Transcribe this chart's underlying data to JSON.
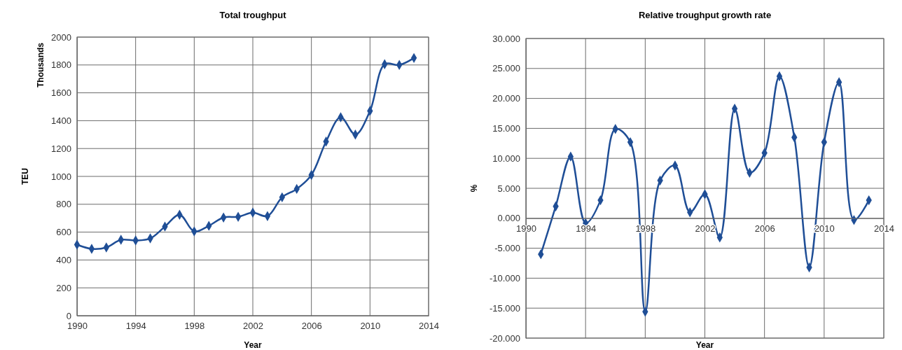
{
  "chart_data": [
    {
      "type": "line",
      "title": "Total troughput",
      "xlabel": "Year",
      "ylabel": "TEU",
      "y2label": "Thousands",
      "x": [
        1990,
        1991,
        1992,
        1993,
        1994,
        1995,
        1996,
        1997,
        1998,
        1999,
        2000,
        2001,
        2002,
        2003,
        2004,
        2005,
        2006,
        2007,
        2008,
        2009,
        2010,
        2011,
        2012,
        2013
      ],
      "series": [
        {
          "color": "#1f4e96",
          "values": [
            510,
            480,
            490,
            545,
            540,
            555,
            640,
            725,
            605,
            645,
            705,
            710,
            740,
            715,
            850,
            910,
            1010,
            1250,
            1425,
            1300,
            1470,
            1805,
            1800,
            1850
          ]
        }
      ],
      "xlim": [
        1990,
        2014
      ],
      "xticks": [
        1990,
        1994,
        1998,
        2002,
        2006,
        2010,
        2014
      ],
      "ylim": [
        0,
        2000
      ],
      "yticks": [
        0,
        200,
        400,
        600,
        800,
        1000,
        1200,
        1400,
        1600,
        1800,
        2000
      ],
      "grid": true,
      "marker": "diamond"
    },
    {
      "type": "line",
      "title": "Relative troughput growth rate",
      "xlabel": "Year",
      "ylabel": "%",
      "x": [
        1991,
        1992,
        1993,
        1994,
        1995,
        1996,
        1997,
        1998,
        1999,
        2000,
        2001,
        2002,
        2003,
        2004,
        2005,
        2006,
        2007,
        2008,
        2009,
        2010,
        2011,
        2012,
        2013
      ],
      "series": [
        {
          "color": "#1f4e96",
          "values": [
            -6,
            2,
            10.3,
            -0.8,
            3,
            14.9,
            12.7,
            -15.6,
            6.3,
            8.8,
            1,
            4,
            -3.2,
            18.3,
            7.6,
            10.9,
            23.7,
            13.5,
            -8.2,
            12.7,
            22.7,
            -0.3,
            3
          ]
        }
      ],
      "xlim": [
        1990,
        2014
      ],
      "xticks": [
        1990,
        1994,
        1998,
        2002,
        2006,
        2010,
        2014
      ],
      "ylim": [
        -20,
        30
      ],
      "yticks": [
        {
          "value": -20,
          "label": "-20.000"
        },
        {
          "value": -15,
          "label": "-15.000"
        },
        {
          "value": -10,
          "label": "-10.000"
        },
        {
          "value": -5,
          "label": "-5.000"
        },
        {
          "value": 0,
          "label": "0.000"
        },
        {
          "value": 5,
          "label": "5.000"
        },
        {
          "value": 10,
          "label": "10.000"
        },
        {
          "value": 15,
          "label": "15.000"
        },
        {
          "value": 20,
          "label": "20.000"
        },
        {
          "value": 25,
          "label": "25.000"
        },
        {
          "value": 30,
          "label": "30.000"
        }
      ],
      "grid": true,
      "marker": "diamond"
    }
  ]
}
